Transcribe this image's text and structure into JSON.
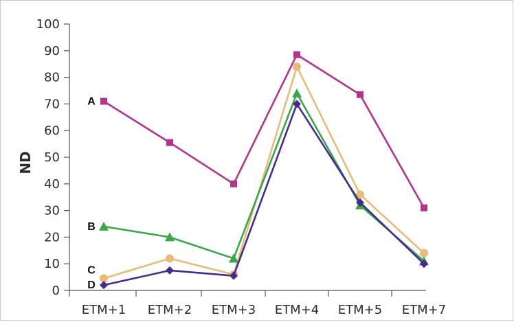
{
  "chart_data": {
    "type": "line",
    "categories": [
      "ETM+1",
      "ETM+2",
      "ETM+3",
      "ETM+4",
      "ETM+5",
      "ETM+7"
    ],
    "ylabel": "ND",
    "xlabel": "",
    "ylim": [
      0,
      100
    ],
    "yticks": [
      0,
      10,
      20,
      30,
      40,
      50,
      60,
      70,
      80,
      90,
      100
    ],
    "grid": false,
    "series": [
      {
        "name": "A",
        "color": "#b5338f",
        "marker": "square",
        "values": [
          71,
          55.5,
          40,
          88.5,
          73.5,
          31
        ]
      },
      {
        "name": "B",
        "color": "#3aa64a",
        "marker": "triangle",
        "values": [
          24,
          20,
          12,
          74,
          32,
          11
        ]
      },
      {
        "name": "C",
        "color": "#e8bb78",
        "marker": "circle",
        "values": [
          4.5,
          12,
          6,
          84,
          36,
          14
        ]
      },
      {
        "name": "D",
        "color": "#452b8f",
        "marker": "diamond",
        "values": [
          2,
          7.5,
          5.5,
          70,
          33,
          10
        ]
      }
    ]
  }
}
